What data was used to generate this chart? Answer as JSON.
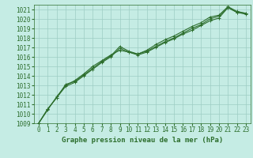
{
  "xlabel": "Graphe pression niveau de la mer (hPa)",
  "ylim": [
    1009,
    1021.5
  ],
  "xlim": [
    -0.5,
    23.5
  ],
  "yticks": [
    1009,
    1010,
    1011,
    1012,
    1013,
    1014,
    1015,
    1016,
    1017,
    1018,
    1019,
    1020,
    1021
  ],
  "xticks": [
    0,
    1,
    2,
    3,
    4,
    5,
    6,
    7,
    8,
    9,
    10,
    11,
    12,
    13,
    14,
    15,
    16,
    17,
    18,
    19,
    20,
    21,
    22,
    23
  ],
  "bg_color": "#c5ece4",
  "grid_color": "#9ecdc4",
  "line_color": "#2d6e2d",
  "line1": [
    1009.0,
    1010.5,
    1011.7,
    1012.9,
    1013.3,
    1014.0,
    1014.7,
    1015.4,
    1016.0,
    1016.9,
    1016.5,
    1016.2,
    1016.5,
    1017.0,
    1017.5,
    1017.9,
    1018.4,
    1018.8,
    1019.3,
    1019.8,
    1020.1,
    1021.2,
    1020.7,
    1020.6
  ],
  "line2": [
    1009.0,
    1010.4,
    1011.8,
    1013.0,
    1013.5,
    1014.2,
    1015.0,
    1015.6,
    1016.2,
    1016.7,
    1016.5,
    1016.3,
    1016.6,
    1017.1,
    1017.6,
    1018.0,
    1018.5,
    1019.0,
    1019.4,
    1020.0,
    1020.3,
    1021.2,
    1020.7,
    1020.5
  ],
  "line3": [
    1009.0,
    1010.5,
    1011.7,
    1013.1,
    1013.4,
    1014.1,
    1014.8,
    1015.5,
    1016.1,
    1017.1,
    1016.6,
    1016.3,
    1016.7,
    1017.3,
    1017.8,
    1018.2,
    1018.7,
    1019.2,
    1019.6,
    1020.2,
    1020.4,
    1021.3,
    1020.8,
    1020.6
  ],
  "marker": "+",
  "markersize": 3,
  "linewidth": 0.8,
  "tick_fontsize": 5.5,
  "xlabel_fontsize": 6.5
}
